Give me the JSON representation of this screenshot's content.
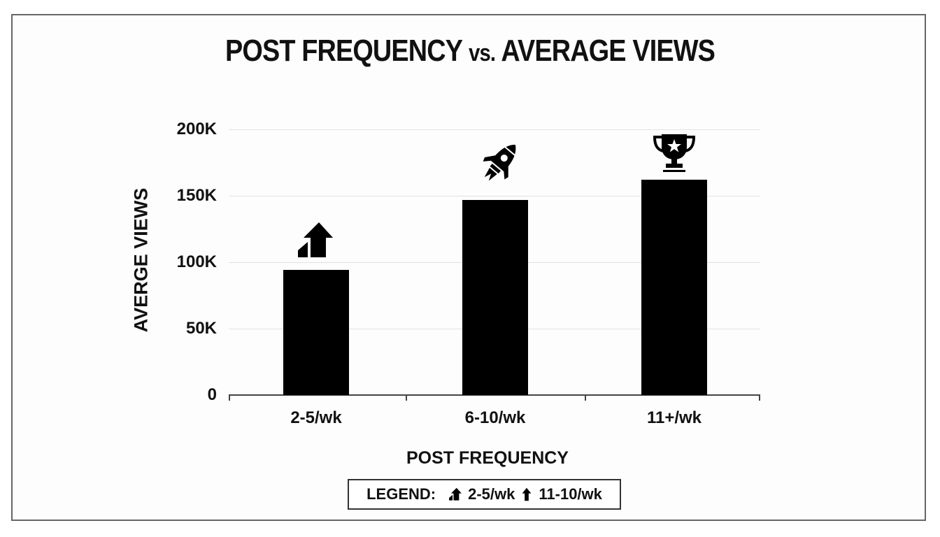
{
  "title": {
    "main_left": "POST FREQUENCY",
    "vs": "vs.",
    "main_right": "AVERAGE VIEWS"
  },
  "axes": {
    "ylabel": "AVERGE VIEWS",
    "xlabel": "POST FREQUENCY",
    "yticks": [
      "0",
      "50K",
      "100K",
      "150K",
      "200K"
    ],
    "xticks": [
      "2-5/wk",
      "6-10/wk",
      "11+/wk"
    ]
  },
  "bars": [
    {
      "category": "2-5/wk",
      "icon": "growth-arrow-icon"
    },
    {
      "category": "6-10/wk",
      "icon": "rocket-icon"
    },
    {
      "category": "11+/wk",
      "icon": "trophy-icon"
    }
  ],
  "legend": {
    "label": "LEGEND:",
    "items": [
      {
        "icon": "growth-arrow-icon",
        "text": "2-5/wk"
      },
      {
        "icon": "up-arrow-icon",
        "text": "11-10/wk"
      }
    ]
  },
  "colors": {
    "bar": "#000000",
    "grid": "#e2e2e2",
    "frame": "#666666"
  },
  "chart_data": {
    "type": "bar",
    "title": "POST FREQUENCY vs. AVERAGE VIEWS",
    "xlabel": "POST FREQUENCY",
    "ylabel": "AVERGE VIEWS",
    "categories": [
      "2-5/wk",
      "6-10/wk",
      "11+/wk"
    ],
    "values": [
      94000,
      147000,
      162000
    ],
    "ylim": [
      0,
      200000
    ],
    "yticks": [
      0,
      50000,
      100000,
      150000,
      200000
    ],
    "ytick_labels": [
      "0",
      "50K",
      "100K",
      "150K",
      "200K"
    ],
    "grid": true,
    "annotations": [
      {
        "category": "2-5/wk",
        "icon": "growth-arrow"
      },
      {
        "category": "6-10/wk",
        "icon": "rocket"
      },
      {
        "category": "11+/wk",
        "icon": "trophy"
      }
    ],
    "legend": {
      "position": "bottom-center",
      "entries": [
        "2-5/wk",
        "11-10/wk"
      ]
    }
  }
}
